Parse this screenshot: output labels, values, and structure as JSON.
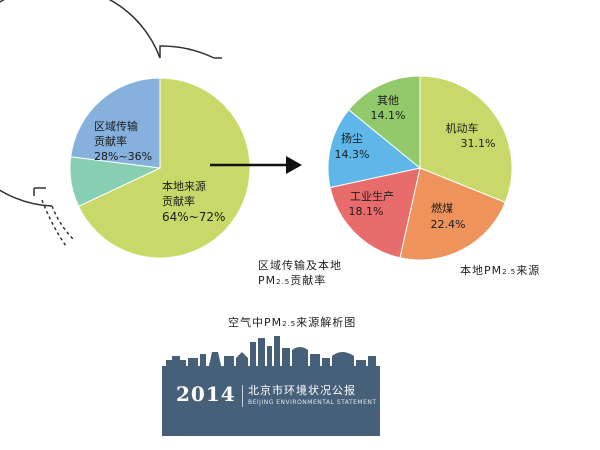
{
  "chart_data": [
    {
      "type": "pie",
      "slices": [
        {
          "label": "本地来源贡献率",
          "line1": "本地来源",
          "line2": "贡献率",
          "value_text": "64%~72%",
          "value": 68,
          "color": "#c8d96a"
        },
        {
          "label": "区域传输贡献率",
          "line1": "区域传输",
          "line2": "贡献率",
          "value_text": "28%~36%",
          "value": 23,
          "color": "#85b1dc"
        },
        {
          "label": "",
          "value": 9,
          "color": "#86cfb3"
        }
      ],
      "caption_line1": "区域传输及本地",
      "caption_pm": "PM",
      "caption_sub": "2.5",
      "caption_line2_rest": "贡献率"
    },
    {
      "type": "pie",
      "slices": [
        {
          "label": "机动车",
          "value": 31.1,
          "value_text": "31.1%",
          "color": "#c9d86a"
        },
        {
          "label": "燃煤",
          "value": 22.4,
          "value_text": "22.4%",
          "color": "#ef935c"
        },
        {
          "label": "工业生产",
          "value": 18.1,
          "value_text": "18.1%",
          "color": "#e86c6c"
        },
        {
          "label": "扬尘",
          "value": 14.3,
          "value_text": "14.3%",
          "color": "#5eb7e8"
        },
        {
          "label": "其他",
          "value": 14.1,
          "value_text": "14.1%",
          "color": "#92c96b"
        }
      ],
      "caption_prefix": "本地",
      "caption_pm": "PM",
      "caption_sub": "2.5",
      "caption_suffix": "来源"
    }
  ],
  "title": {
    "prefix": "空气中",
    "pm": "PM",
    "sub": "2.5",
    "suffix": "来源解析图"
  },
  "banner": {
    "year": "2014",
    "title_cn": "北京市环境状况公报",
    "title_en": "BEIJING ENVIRONMENTAL STATEMENT"
  },
  "colors": {
    "banner_bg": "#46607a",
    "skyline": "#46607a"
  }
}
